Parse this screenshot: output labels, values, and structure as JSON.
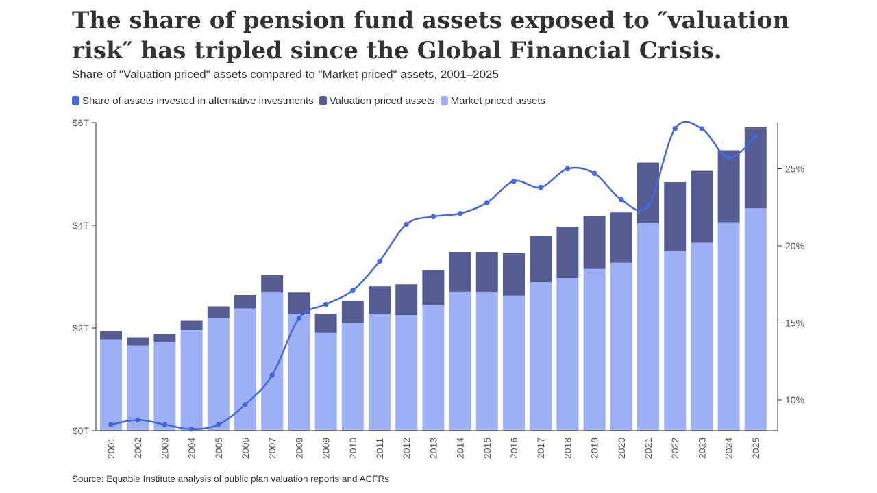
{
  "header": {
    "title": "The share of pension fund assets exposed to ″valuation risk″ has tripled since the Global Financial Crisis.",
    "subtitle": "Share of \"Valuation priced\" assets compared to \"Market priced\" assets, 2001–2025"
  },
  "footer": {
    "source": "Source: Equable Institute analysis of public plan valuation reports and ACFRs"
  },
  "colors": {
    "line": "#4466e0",
    "valuation": "#565d92",
    "market": "#9db0f5",
    "axis": "#333333",
    "tick_text": "#555555"
  },
  "chart_data": {
    "type": "bar",
    "stacked": true,
    "categories": [
      "2001",
      "2002",
      "2003",
      "2004",
      "2005",
      "2006",
      "2007",
      "2008",
      "2009",
      "2010",
      "2011",
      "2012",
      "2013",
      "2014",
      "2015",
      "2016",
      "2017",
      "2018",
      "2019",
      "2020",
      "2021",
      "2022",
      "2023",
      "2024",
      "2025"
    ],
    "legend_position": "top-left",
    "grid": false,
    "series": [
      {
        "name": "Share of assets invested in alternative investments",
        "type": "line",
        "axis": "right",
        "values": [
          8.4,
          8.7,
          8.4,
          8.1,
          8.4,
          9.7,
          11.6,
          15.3,
          16.2,
          17.1,
          19.0,
          21.4,
          21.9,
          22.1,
          22.8,
          24.2,
          23.8,
          25.0,
          24.7,
          23.0,
          22.6,
          27.6,
          27.6,
          25.7,
          27.1
        ]
      },
      {
        "name": "Valuation priced assets",
        "type": "bar",
        "axis": "left",
        "values": [
          0.16,
          0.16,
          0.16,
          0.18,
          0.22,
          0.26,
          0.34,
          0.41,
          0.37,
          0.43,
          0.53,
          0.6,
          0.68,
          0.77,
          0.79,
          0.83,
          0.91,
          0.99,
          1.03,
          0.98,
          1.18,
          1.34,
          1.4,
          1.4,
          1.58
        ]
      },
      {
        "name": "Market priced assets",
        "type": "bar",
        "axis": "left",
        "values": [
          1.78,
          1.66,
          1.72,
          1.96,
          2.2,
          2.38,
          2.69,
          2.28,
          1.91,
          2.1,
          2.28,
          2.25,
          2.44,
          2.71,
          2.69,
          2.63,
          2.89,
          2.97,
          3.15,
          3.27,
          4.04,
          3.5,
          3.66,
          4.06,
          4.33
        ]
      }
    ],
    "y_left": {
      "ylim": [
        0,
        6
      ],
      "ticks": [
        0,
        2,
        4,
        6
      ],
      "tick_labels": [
        "$0T",
        "$2T",
        "$4T",
        "$6T"
      ]
    },
    "y_right": {
      "ylim": [
        8,
        28
      ],
      "ticks": [
        10,
        15,
        20,
        25
      ],
      "tick_labels": [
        "10%",
        "15%",
        "20%",
        "25%"
      ]
    }
  }
}
